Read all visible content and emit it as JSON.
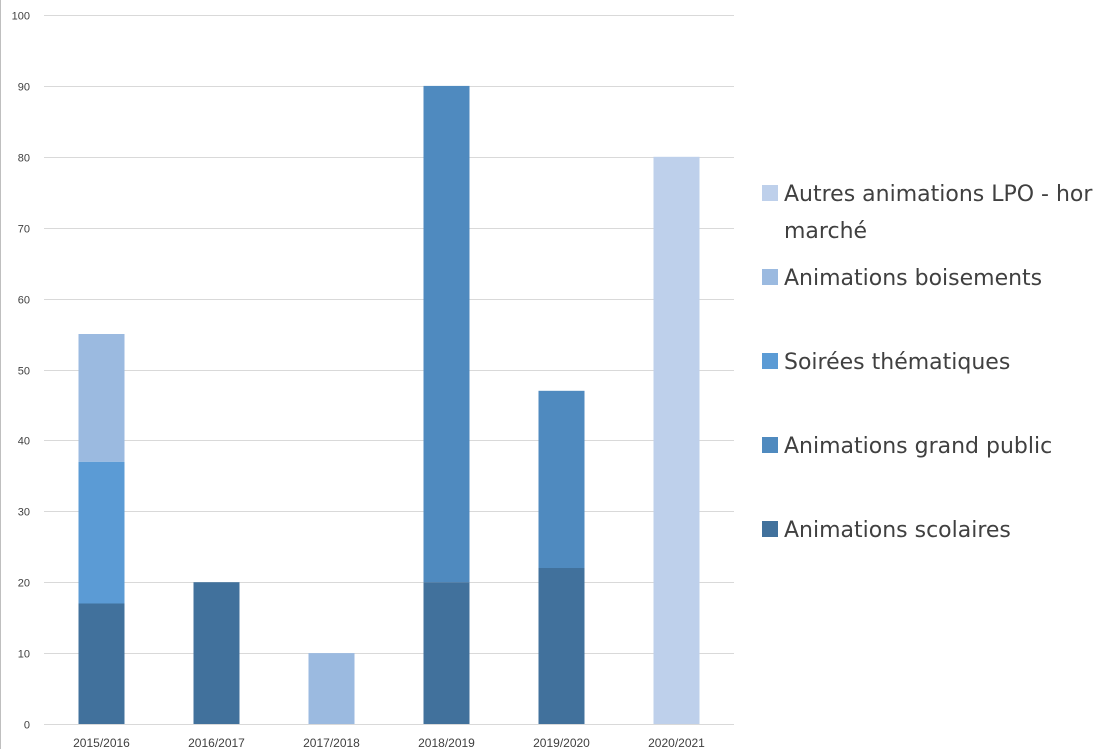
{
  "chart_data": {
    "type": "bar",
    "stacked": true,
    "categories": [
      "2015/2016",
      "2016/2017",
      "2017/2018",
      "2018/2019",
      "2019/2020",
      "2020/2021"
    ],
    "series": [
      {
        "name": "Animations scolaires",
        "color": "#41719C",
        "values": [
          17,
          20,
          0,
          20,
          22,
          0
        ]
      },
      {
        "name": "Animations grand public",
        "color": "#4F8ABF",
        "values": [
          0,
          0,
          0,
          70,
          25,
          0
        ]
      },
      {
        "name": "Soirées thématiques",
        "color": "#5B9BD5",
        "values": [
          20,
          0,
          0,
          0,
          0,
          0
        ]
      },
      {
        "name": "Animations boisements",
        "color": "#9BBAE0",
        "values": [
          18,
          0,
          10,
          0,
          0,
          0
        ]
      },
      {
        "name": "Autres animations LPO - hors marché",
        "color": "#BED0EB",
        "values": [
          0,
          0,
          0,
          0,
          0,
          80
        ]
      }
    ],
    "legend": {
      "position": "right",
      "entries": [
        {
          "lines": [
            "Autres animations LPO - hor",
            "marché"
          ],
          "color": "#BED0EB"
        },
        {
          "lines": [
            "Animations boisements"
          ],
          "color": "#9BBAE0"
        },
        {
          "lines": [
            "Soirées thématiques"
          ],
          "color": "#5B9BD5"
        },
        {
          "lines": [
            "Animations grand public"
          ],
          "color": "#4F8ABF"
        },
        {
          "lines": [
            "Animations scolaires"
          ],
          "color": "#41719C"
        }
      ]
    },
    "ylim": [
      0,
      100
    ],
    "yticks": [
      "0",
      "10",
      "20",
      "30",
      "40",
      "50",
      "60",
      "70",
      "80",
      "90",
      "100"
    ],
    "grid": true,
    "gridColor": "#D9D9D9"
  }
}
